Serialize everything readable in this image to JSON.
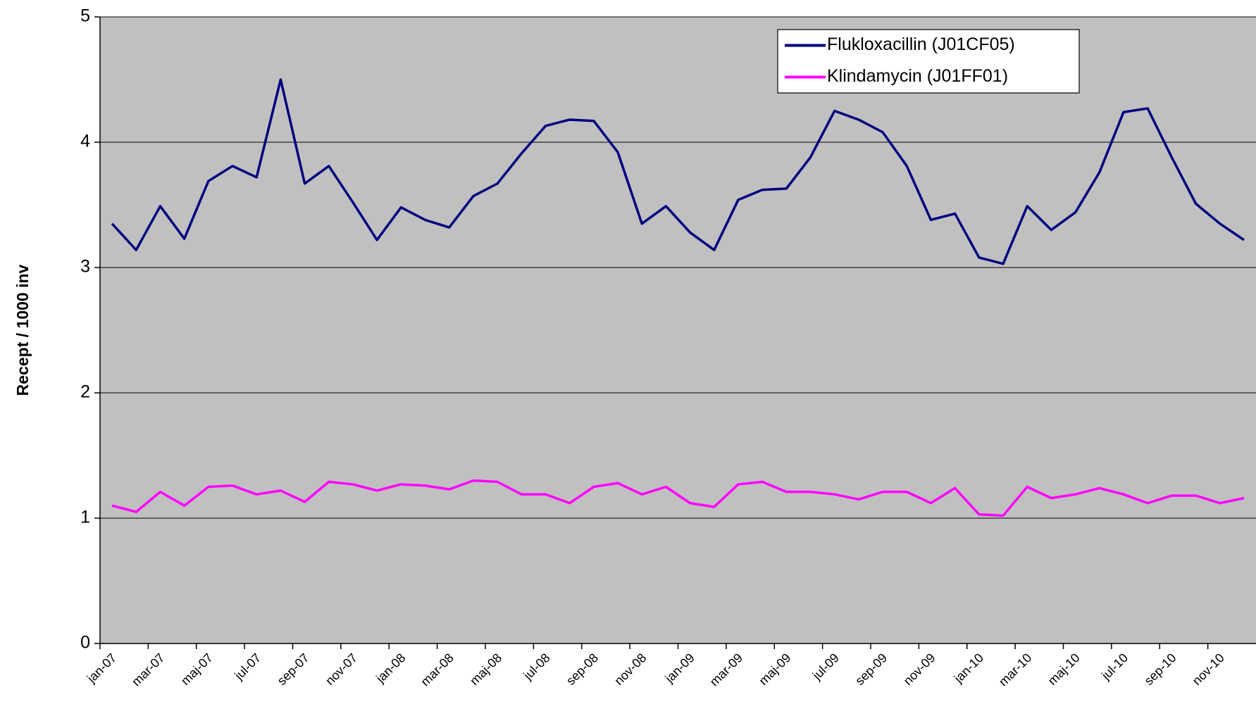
{
  "chart_data": {
    "type": "line",
    "ylabel": "Recept / 1000 inv",
    "categories": [
      "jan-07",
      null,
      "mar-07",
      null,
      "maj-07",
      null,
      "jul-07",
      null,
      "sep-07",
      null,
      "nov-07",
      null,
      "jan-08",
      null,
      "mar-08",
      null,
      "maj-08",
      null,
      "jul-08",
      null,
      "sep-08",
      null,
      "nov-08",
      null,
      "jan-09",
      null,
      "mar-09",
      null,
      "maj-09",
      null,
      "jul-09",
      null,
      "sep-09",
      null,
      "nov-09",
      null,
      "jan-10",
      null,
      "mar-10",
      null,
      "maj-10",
      null,
      "jul-10",
      null,
      "sep-10",
      null,
      "nov-10",
      null
    ],
    "series": [
      {
        "name": "Flukloxacillin  (J01CF05)",
        "color": "#000080",
        "values": [
          3.35,
          3.14,
          3.49,
          3.23,
          3.69,
          3.81,
          3.72,
          4.5,
          3.67,
          3.81,
          3.52,
          3.22,
          3.48,
          3.38,
          3.32,
          3.57,
          3.67,
          3.91,
          4.13,
          4.18,
          4.17,
          3.92,
          3.35,
          3.49,
          3.28,
          3.14,
          3.54,
          3.62,
          3.63,
          3.88,
          4.25,
          4.18,
          4.08,
          3.81,
          3.38,
          3.43,
          3.08,
          3.03,
          3.49,
          3.3,
          3.44,
          3.76,
          4.24,
          4.27,
          3.88,
          3.51,
          3.35,
          3.22
        ]
      },
      {
        "name": "Klindamycin (J01FF01)",
        "color": "#ff00ff",
        "values": [
          1.1,
          1.05,
          1.21,
          1.1,
          1.25,
          1.26,
          1.19,
          1.22,
          1.13,
          1.29,
          1.27,
          1.22,
          1.27,
          1.26,
          1.23,
          1.3,
          1.29,
          1.19,
          1.19,
          1.12,
          1.25,
          1.28,
          1.19,
          1.25,
          1.12,
          1.09,
          1.27,
          1.29,
          1.21,
          1.21,
          1.19,
          1.15,
          1.21,
          1.21,
          1.12,
          1.24,
          1.03,
          1.02,
          1.25,
          1.16,
          1.19,
          1.24,
          1.19,
          1.12,
          1.18,
          1.18,
          1.12,
          1.16
        ]
      }
    ],
    "ylim": [
      0,
      5
    ],
    "yticks": [
      0,
      1,
      2,
      3,
      4,
      5
    ],
    "grid": true,
    "plot_background": "#c0c0c0",
    "legend": "top-right"
  }
}
